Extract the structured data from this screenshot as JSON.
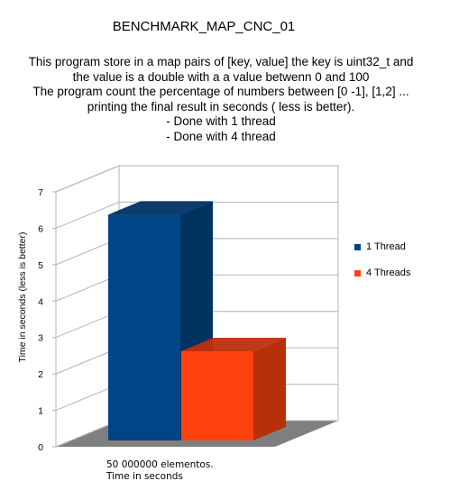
{
  "chart_data": {
    "type": "bar",
    "title": "BENCHMARK_MAP_CNC_01",
    "subtitle_lines": [
      "This program store  in a map pairs of [key, value] the key is uint32_t and",
      "the value is a double with a a value betwenn 0 and 100",
      "The program count the percentage of numbers between [0 -1], [1,2] ...",
      "printing the final result in seconds ( less is better).",
      "- Done with 1 thread",
      "- Done with 4 thread"
    ],
    "categories": [
      "50 000000 elementos.\nTime in seconds"
    ],
    "series": [
      {
        "name": "1 Thread",
        "values": [
          6.2
        ],
        "color": "#004586"
      },
      {
        "name": "4 Threads",
        "values": [
          2.45
        ],
        "color": "#ff420e"
      }
    ],
    "xlabel": "",
    "ylabel": "Time in seconds (less is better)",
    "ylim": [
      0,
      7
    ],
    "yticks": [
      "0",
      "1",
      "2",
      "3",
      "4",
      "5",
      "6",
      "7"
    ],
    "grid": true,
    "legend_position": "right",
    "style": "3d"
  }
}
